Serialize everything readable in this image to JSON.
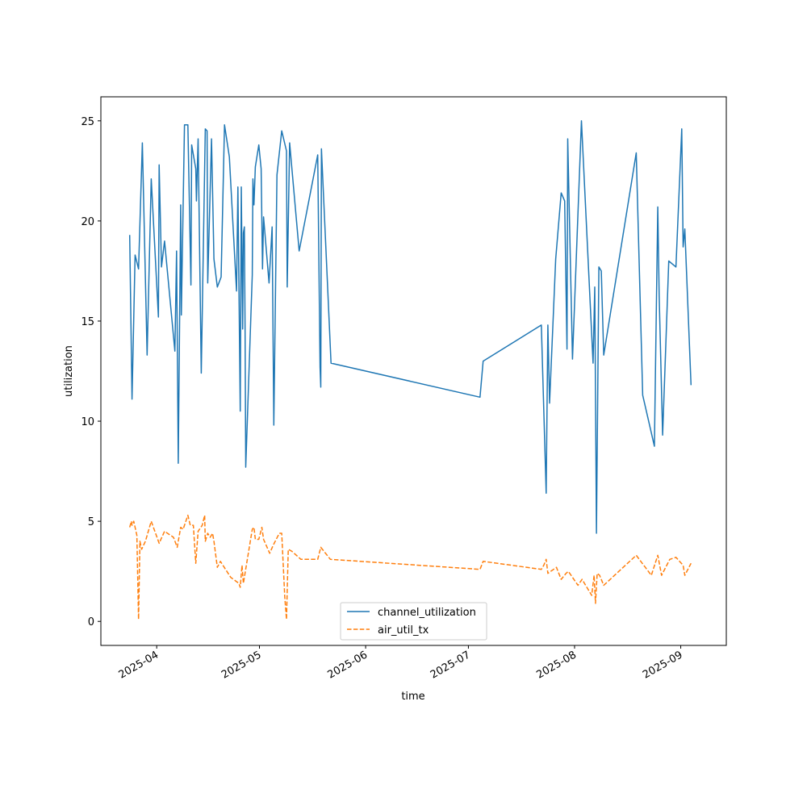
{
  "chart_data": {
    "type": "line",
    "title": "",
    "xlabel": "time",
    "ylabel": "utilization",
    "x_unit": "days since 2025-04-01",
    "xlim": [
      -16.3,
      166.3
    ],
    "ylim": [
      -1.2,
      26.2
    ],
    "grid": false,
    "legend_placement": "lower-center",
    "xticks": [
      {
        "value": 0,
        "label": "2025-04"
      },
      {
        "value": 30,
        "label": "2025-05"
      },
      {
        "value": 61,
        "label": "2025-06"
      },
      {
        "value": 91,
        "label": "2025-07"
      },
      {
        "value": 122,
        "label": "2025-08"
      },
      {
        "value": 153,
        "label": "2025-09"
      }
    ],
    "yticks": [
      {
        "value": 0,
        "label": "0"
      },
      {
        "value": 5,
        "label": "5"
      },
      {
        "value": 10,
        "label": "10"
      },
      {
        "value": 15,
        "label": "15"
      },
      {
        "value": 20,
        "label": "20"
      },
      {
        "value": 25,
        "label": "25"
      }
    ],
    "series": [
      {
        "name": "channel_utilization",
        "color": "#1f77b4",
        "style": "solid",
        "points": [
          [
            -7.9,
            19.3
          ],
          [
            -7.2,
            11.1
          ],
          [
            -6.3,
            18.3
          ],
          [
            -5.3,
            17.6
          ],
          [
            -4.2,
            23.9
          ],
          [
            -2.8,
            13.3
          ],
          [
            -1.6,
            22.1
          ],
          [
            0.5,
            15.2
          ],
          [
            0.7,
            22.8
          ],
          [
            1.4,
            17.7
          ],
          [
            2.3,
            19.0
          ],
          [
            5.3,
            13.5
          ],
          [
            5.8,
            18.5
          ],
          [
            6.3,
            7.9
          ],
          [
            7.0,
            20.8
          ],
          [
            7.2,
            15.3
          ],
          [
            8.1,
            24.8
          ],
          [
            9.1,
            24.8
          ],
          [
            10.0,
            16.8
          ],
          [
            10.2,
            23.8
          ],
          [
            11.4,
            22.6
          ],
          [
            11.6,
            21.0
          ],
          [
            12.1,
            24.1
          ],
          [
            13.0,
            12.4
          ],
          [
            14.2,
            24.6
          ],
          [
            14.7,
            24.5
          ],
          [
            14.9,
            16.9
          ],
          [
            16.0,
            24.1
          ],
          [
            16.7,
            18.1
          ],
          [
            17.7,
            16.7
          ],
          [
            18.8,
            17.2
          ],
          [
            19.8,
            24.8
          ],
          [
            21.2,
            23.2
          ],
          [
            23.3,
            16.5
          ],
          [
            23.7,
            21.7
          ],
          [
            24.4,
            10.5
          ],
          [
            24.7,
            21.7
          ],
          [
            25.1,
            14.6
          ],
          [
            25.3,
            19.4
          ],
          [
            25.6,
            19.7
          ],
          [
            25.8,
            14.5
          ],
          [
            26.0,
            7.7
          ],
          [
            27.9,
            17.3
          ],
          [
            28.1,
            22.1
          ],
          [
            28.4,
            20.8
          ],
          [
            28.8,
            22.7
          ],
          [
            29.8,
            23.8
          ],
          [
            30.5,
            22.6
          ],
          [
            30.9,
            17.6
          ],
          [
            31.2,
            20.2
          ],
          [
            32.8,
            16.9
          ],
          [
            33.7,
            19.7
          ],
          [
            34.2,
            9.8
          ],
          [
            35.1,
            22.3
          ],
          [
            36.5,
            24.5
          ],
          [
            37.9,
            23.5
          ],
          [
            38.1,
            16.7
          ],
          [
            38.8,
            23.9
          ],
          [
            41.6,
            18.5
          ],
          [
            47.0,
            23.3
          ],
          [
            47.7,
            12.7
          ],
          [
            47.9,
            11.7
          ],
          [
            48.1,
            23.6
          ],
          [
            50.9,
            12.9
          ],
          [
            94.4,
            11.2
          ],
          [
            95.3,
            13.0
          ],
          [
            112.3,
            14.8
          ],
          [
            113.7,
            6.4
          ],
          [
            114.2,
            14.8
          ],
          [
            114.7,
            10.9
          ],
          [
            116.5,
            18.1
          ],
          [
            118.1,
            21.4
          ],
          [
            119.1,
            21.0
          ],
          [
            119.8,
            13.6
          ],
          [
            120.0,
            24.1
          ],
          [
            121.4,
            13.1
          ],
          [
            124.0,
            25.0
          ],
          [
            127.4,
            12.9
          ],
          [
            127.9,
            16.7
          ],
          [
            128.4,
            4.4
          ],
          [
            129.1,
            17.7
          ],
          [
            129.8,
            17.5
          ],
          [
            130.5,
            13.3
          ],
          [
            140.0,
            23.4
          ],
          [
            141.9,
            11.3
          ],
          [
            145.3,
            8.75
          ],
          [
            146.3,
            20.7
          ],
          [
            146.7,
            16.3
          ],
          [
            147.7,
            9.3
          ],
          [
            149.5,
            18.0
          ],
          [
            151.6,
            17.7
          ],
          [
            153.3,
            24.6
          ],
          [
            153.7,
            18.7
          ],
          [
            154.2,
            19.6
          ],
          [
            156.0,
            11.8
          ]
        ]
      },
      {
        "name": "air_util_tx",
        "color": "#ff7f0e",
        "style": "dashed",
        "points": [
          [
            -7.9,
            4.7
          ],
          [
            -7.4,
            5.0
          ],
          [
            -7.2,
            4.8
          ],
          [
            -6.7,
            5.0
          ],
          [
            -5.8,
            4.3
          ],
          [
            -5.3,
            0.1
          ],
          [
            -4.9,
            4.0
          ],
          [
            -4.4,
            3.6
          ],
          [
            -3.3,
            4.0
          ],
          [
            -1.6,
            5.0
          ],
          [
            0.7,
            3.9
          ],
          [
            2.3,
            4.5
          ],
          [
            4.9,
            4.2
          ],
          [
            6.0,
            3.7
          ],
          [
            7.0,
            4.7
          ],
          [
            7.7,
            4.6
          ],
          [
            9.1,
            5.3
          ],
          [
            9.8,
            4.8
          ],
          [
            10.7,
            4.8
          ],
          [
            11.4,
            2.9
          ],
          [
            12.1,
            4.5
          ],
          [
            13.3,
            4.8
          ],
          [
            14.0,
            5.3
          ],
          [
            14.2,
            4.0
          ],
          [
            14.9,
            4.4
          ],
          [
            15.6,
            4.2
          ],
          [
            16.3,
            4.4
          ],
          [
            16.7,
            4.0
          ],
          [
            17.7,
            2.7
          ],
          [
            18.6,
            3.0
          ],
          [
            21.6,
            2.2
          ],
          [
            24.0,
            1.9
          ],
          [
            24.4,
            1.7
          ],
          [
            24.9,
            2.8
          ],
          [
            25.3,
            1.9
          ],
          [
            27.9,
            4.6
          ],
          [
            28.4,
            4.7
          ],
          [
            28.8,
            4.1
          ],
          [
            29.8,
            4.1
          ],
          [
            30.7,
            4.7
          ],
          [
            31.2,
            4.1
          ],
          [
            33.0,
            3.4
          ],
          [
            34.0,
            3.8
          ],
          [
            35.8,
            4.4
          ],
          [
            36.5,
            4.4
          ],
          [
            37.4,
            1.2
          ],
          [
            37.9,
            0.1
          ],
          [
            38.4,
            3.6
          ],
          [
            39.5,
            3.5
          ],
          [
            42.1,
            3.1
          ],
          [
            47.0,
            3.1
          ],
          [
            47.9,
            3.7
          ],
          [
            50.7,
            3.1
          ],
          [
            94.4,
            2.6
          ],
          [
            95.3,
            3.0
          ],
          [
            112.3,
            2.6
          ],
          [
            113.0,
            2.8
          ],
          [
            113.7,
            3.1
          ],
          [
            114.2,
            2.4
          ],
          [
            116.7,
            2.7
          ],
          [
            118.1,
            2.1
          ],
          [
            119.5,
            2.4
          ],
          [
            120.2,
            2.5
          ],
          [
            121.4,
            2.2
          ],
          [
            123.0,
            1.8
          ],
          [
            124.2,
            2.1
          ],
          [
            127.0,
            1.3
          ],
          [
            127.7,
            2.3
          ],
          [
            128.1,
            0.9
          ],
          [
            128.6,
            2.4
          ],
          [
            129.3,
            2.3
          ],
          [
            130.5,
            1.8
          ],
          [
            140.0,
            3.3
          ],
          [
            144.4,
            2.3
          ],
          [
            146.3,
            3.3
          ],
          [
            147.4,
            2.3
          ],
          [
            149.8,
            3.1
          ],
          [
            151.6,
            3.2
          ],
          [
            153.7,
            2.8
          ],
          [
            154.2,
            2.3
          ],
          [
            156.0,
            2.9
          ]
        ]
      }
    ]
  }
}
